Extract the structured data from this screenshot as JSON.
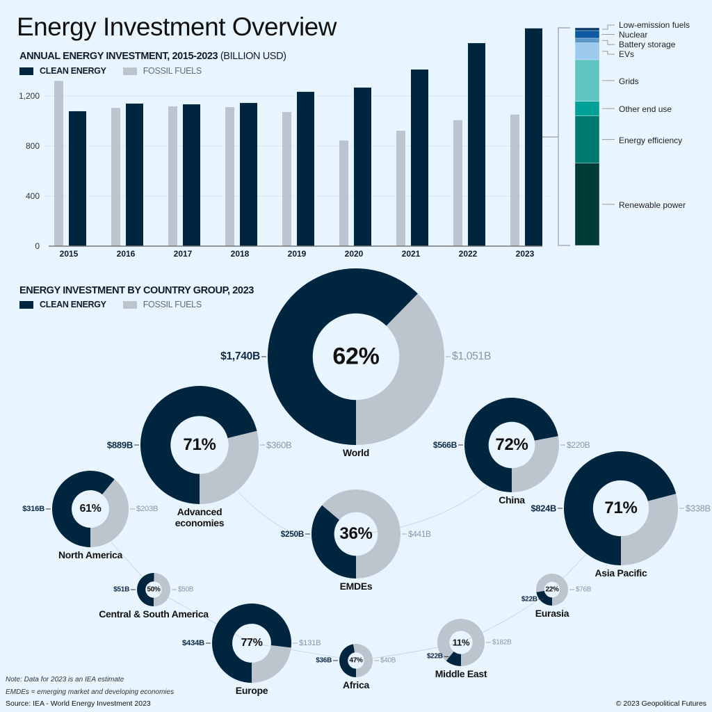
{
  "title": "Energy Investment Overview",
  "colors": {
    "background": "#e9f5fe",
    "clean": "#00263f",
    "fossil": "#bcc5cd"
  },
  "chart_data": [
    {
      "type": "bar",
      "title": "ANNUAL ENERGY INVESTMENT, 2015-2023",
      "title_unit": "(BILLION USD)",
      "legend": {
        "clean": "CLEAN ENERGY",
        "fossil": "FOSSIL FUELS",
        "placement": "top-left"
      },
      "categories": [
        "2015",
        "2016",
        "2017",
        "2018",
        "2019",
        "2020",
        "2021",
        "2022",
        "2023"
      ],
      "series": [
        {
          "name": "FOSSIL FUELS",
          "color": "#bcc5cd",
          "values": [
            1320,
            1105,
            1117,
            1111,
            1072,
            844,
            922,
            1006,
            1051
          ]
        },
        {
          "name": "CLEAN ENERGY",
          "color": "#00263f",
          "values": [
            1078,
            1139,
            1133,
            1144,
            1233,
            1267,
            1411,
            1622,
            1740
          ]
        }
      ],
      "yticks": [
        0,
        400,
        800,
        1200
      ],
      "ytick_labels": [
        "0",
        "400",
        "800",
        "1,200"
      ],
      "ylim": [
        0,
        1760
      ],
      "grid": true
    },
    {
      "type": "bar",
      "stacked": true,
      "categories": [
        "2023"
      ],
      "series": [
        {
          "name": "Renewable power",
          "value": 657,
          "color": "#003b38"
        },
        {
          "name": "Energy efficiency",
          "value": 379,
          "color": "#007a70"
        },
        {
          "name": "Other end use",
          "value": 115,
          "color": "#00a096"
        },
        {
          "name": "Grids",
          "value": 333,
          "color": "#5fc4c0"
        },
        {
          "name": "EVs",
          "value": 135,
          "color": "#9ccbef"
        },
        {
          "name": "Battery storage",
          "value": 37,
          "color": "#5b98c8"
        },
        {
          "name": "Nuclear",
          "value": 61,
          "color": "#0d5aa0"
        },
        {
          "name": "Low-emission fuels",
          "value": 22,
          "color": "#0b3a66"
        }
      ]
    },
    {
      "type": "pie",
      "title": "ENERGY INVESTMENT BY COUNTRY GROUP, 2023",
      "legend": {
        "clean": "CLEAN ENERGY",
        "fossil": "FOSSIL FUELS",
        "placement": "top-left"
      },
      "groups": [
        {
          "name": "World",
          "clean": 1740,
          "fossil": 1051,
          "clean_label": "$1,740B",
          "fossil_label": "$1,051B",
          "share_label": "62%"
        },
        {
          "name": "Advanced economies",
          "clean": 889,
          "fossil": 360,
          "clean_label": "$889B",
          "fossil_label": "$360B",
          "share_label": "71%"
        },
        {
          "name": "North America",
          "clean": 316,
          "fossil": 203,
          "clean_label": "$316B",
          "fossil_label": "$203B",
          "share_label": "61%"
        },
        {
          "name": "China",
          "clean": 566,
          "fossil": 220,
          "clean_label": "$566B",
          "fossil_label": "$220B",
          "share_label": "72%"
        },
        {
          "name": "Asia Pacific",
          "clean": 824,
          "fossil": 338,
          "clean_label": "$824B",
          "fossil_label": "$338B",
          "share_label": "71%"
        },
        {
          "name": "EMDEs",
          "clean": 250,
          "fossil": 441,
          "clean_label": "$250B",
          "fossil_label": "$441B",
          "share_label": "36%"
        },
        {
          "name": "Central & South America",
          "clean": 51,
          "fossil": 50,
          "clean_label": "$51B",
          "fossil_label": "$50B",
          "share_label": "50%"
        },
        {
          "name": "Europe",
          "clean": 434,
          "fossil": 131,
          "clean_label": "$434B",
          "fossil_label": "$131B",
          "share_label": "77%"
        },
        {
          "name": "Africa",
          "clean": 36,
          "fossil": 40,
          "clean_label": "$36B",
          "fossil_label": "$40B",
          "share_label": "47%"
        },
        {
          "name": "Eurasia",
          "clean": 22,
          "fossil": 76,
          "clean_label": "$22B",
          "fossil_label": "$76B",
          "share_label": "22%"
        },
        {
          "name": "Middle East",
          "clean": 22,
          "fossil": 182,
          "clean_label": "$22B",
          "fossil_label": "$182B",
          "share_label": "11%"
        }
      ]
    }
  ],
  "footer": {
    "notes": [
      "Note: Data for 2023 is an IEA estimate",
      "EMDEs = emerging market and developing economies"
    ],
    "source": "Source: IEA - World Energy Investment 2023",
    "copyright": "© 2023 Geopolitical Futures"
  }
}
